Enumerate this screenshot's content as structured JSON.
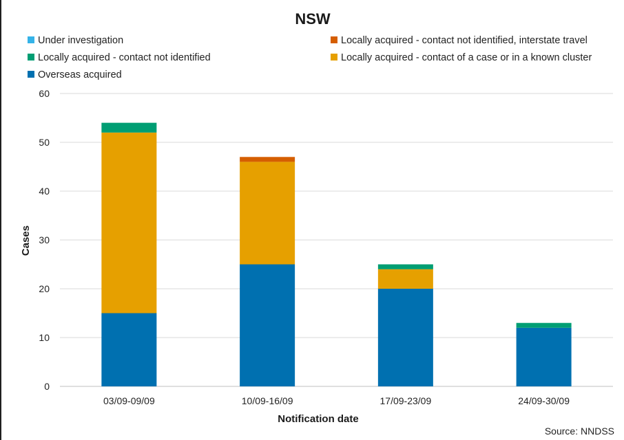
{
  "chart_data": {
    "type": "bar",
    "stacked": true,
    "title": "NSW",
    "xlabel": "Notification date",
    "ylabel": "Cases",
    "ylim": [
      0,
      60
    ],
    "yticks": [
      0,
      10,
      20,
      30,
      40,
      50,
      60
    ],
    "grid": true,
    "legend_position": "top",
    "categories": [
      "03/09-09/09",
      "10/09-16/09",
      "17/09-23/09",
      "24/09-30/09"
    ],
    "series": [
      {
        "name": "Overseas acquired",
        "color": "#0070b0",
        "values": [
          15,
          25,
          20,
          12
        ]
      },
      {
        "name": "Locally acquired - contact of a case or in a known cluster",
        "color": "#e6a000",
        "values": [
          37,
          21,
          4,
          0
        ]
      },
      {
        "name": "Locally acquired - contact not identified, interstate travel",
        "color": "#d55e00",
        "values": [
          0,
          1,
          0,
          0
        ]
      },
      {
        "name": "Locally acquired - contact not identified",
        "color": "#009e73",
        "values": [
          2,
          0,
          1,
          1
        ]
      },
      {
        "name": "Under investigation",
        "color": "#35b3e8",
        "values": [
          0,
          0,
          0,
          0
        ]
      }
    ],
    "source_note": "Source: NNDSS"
  }
}
